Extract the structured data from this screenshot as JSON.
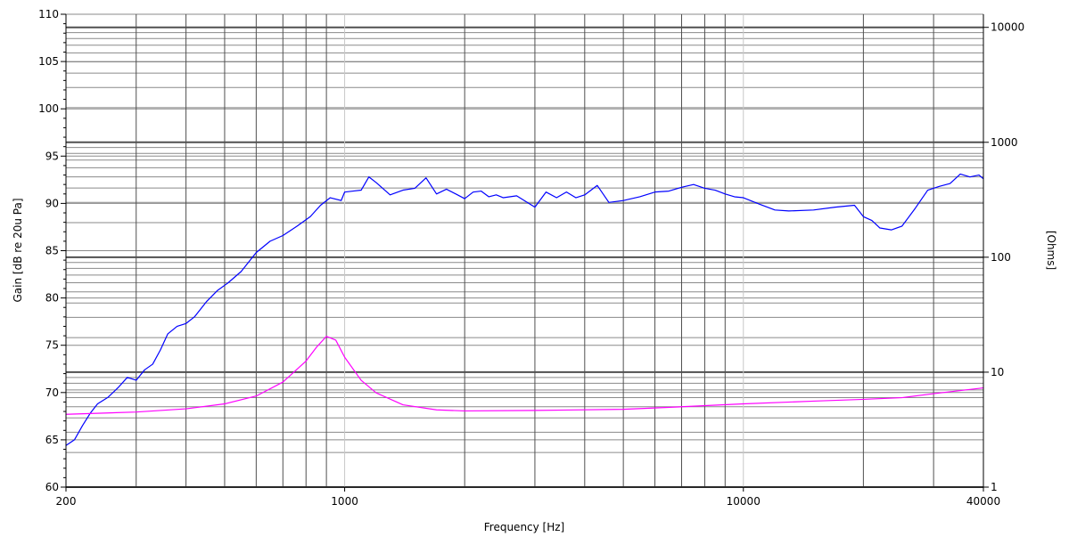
{
  "chart_data": {
    "type": "line",
    "xlabel": "Frequency [Hz]",
    "ylabel": "Gain [dB re 20u Pa]",
    "y2label": "[Ohms]",
    "x_scale": "log",
    "xlim": [
      200,
      40000
    ],
    "ylim": [
      60,
      110
    ],
    "y2_scale": "log",
    "y2lim": [
      1,
      13000
    ],
    "x_ticks": [
      200,
      1000,
      10000,
      40000
    ],
    "x_tick_labels": [
      "200",
      "1000",
      "10000",
      "40000"
    ],
    "y_ticks": [
      60,
      65,
      70,
      75,
      80,
      85,
      90,
      95,
      100,
      105,
      110
    ],
    "y_tick_labels": [
      "60",
      "65",
      "70",
      "75",
      "80",
      "85",
      "90",
      "95",
      "100",
      "105",
      "110"
    ],
    "y2_ticks": [
      1,
      10,
      100,
      1000,
      10000
    ],
    "y2_tick_labels": [
      "1",
      "10",
      "100",
      "1000",
      "10000"
    ],
    "grid": true,
    "background": "#ffffff",
    "grid_colors": {
      "major": "#505050",
      "minor": "#8a8a8a",
      "x_major": "#c8c8c8"
    },
    "series": [
      {
        "axis": "left",
        "color": "#0000ff",
        "x": [
          200,
          210,
          220,
          230,
          240,
          255,
          270,
          285,
          300,
          315,
          330,
          345,
          360,
          380,
          400,
          420,
          450,
          480,
          510,
          550,
          600,
          650,
          700,
          760,
          820,
          870,
          920,
          980,
          1000,
          1050,
          1100,
          1150,
          1200,
          1300,
          1400,
          1500,
          1600,
          1700,
          1800,
          1900,
          2000,
          2100,
          2200,
          2300,
          2400,
          2500,
          2700,
          3000,
          3200,
          3400,
          3600,
          3800,
          4000,
          4300,
          4600,
          5000,
          5500,
          6000,
          6500,
          7000,
          7500,
          8000,
          8500,
          9000,
          9500,
          10000,
          11000,
          12000,
          13000,
          15000,
          17000,
          19000,
          20000,
          21000,
          22000,
          23500,
          25000,
          27000,
          29000,
          31000,
          33000,
          35000,
          37000,
          39000,
          40000
        ],
        "y": [
          64.4,
          65.0,
          66.5,
          67.8,
          68.8,
          69.5,
          70.5,
          71.6,
          71.3,
          72.4,
          73.0,
          74.5,
          76.2,
          77.0,
          77.3,
          78.0,
          79.6,
          80.8,
          81.6,
          82.8,
          84.8,
          86.0,
          86.6,
          87.6,
          88.6,
          89.8,
          90.6,
          90.3,
          91.2,
          91.3,
          91.4,
          92.8,
          92.2,
          90.9,
          91.4,
          91.6,
          92.7,
          91.0,
          91.5,
          91.0,
          90.5,
          91.2,
          91.3,
          90.7,
          90.9,
          90.6,
          90.8,
          89.6,
          91.2,
          90.6,
          91.2,
          90.6,
          90.9,
          91.9,
          90.1,
          90.3,
          90.7,
          91.2,
          91.3,
          91.7,
          92.0,
          91.6,
          91.4,
          91.0,
          90.7,
          90.6,
          89.9,
          89.3,
          89.2,
          89.3,
          89.6,
          89.8,
          88.6,
          88.2,
          87.4,
          87.2,
          87.6,
          89.5,
          91.4,
          91.8,
          92.1,
          93.1,
          92.8,
          93.0,
          92.6
        ]
      },
      {
        "axis": "right",
        "color": "#ff00ff",
        "x": [
          200,
          300,
          400,
          500,
          600,
          700,
          800,
          850,
          900,
          950,
          1000,
          1100,
          1200,
          1400,
          1700,
          2000,
          3000,
          5000,
          7000,
          10000,
          15000,
          20000,
          25000,
          30000,
          40000
        ],
        "y": [
          4.3,
          4.5,
          4.8,
          5.3,
          6.2,
          8.2,
          12.5,
          16.5,
          20.5,
          19.0,
          13.5,
          8.5,
          6.6,
          5.2,
          4.7,
          4.6,
          4.65,
          4.75,
          5.0,
          5.3,
          5.6,
          5.8,
          6.0,
          6.5,
          7.3
        ]
      }
    ]
  }
}
